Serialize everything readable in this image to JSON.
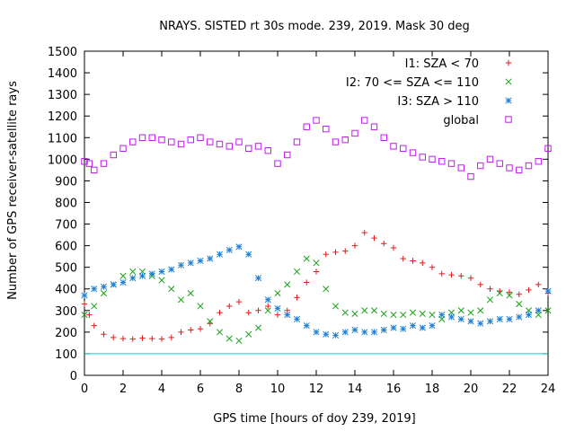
{
  "chart_data": {
    "type": "scatter",
    "title": "NRAYS. SISTED rt 30s mode. 239, 2019. Mask 30 deg",
    "xlabel": "GPS time [hours of doy 239, 2019]",
    "ylabel": "Number of GPS receiver-satellite rays",
    "xlim": [
      0,
      24
    ],
    "ylim": [
      0,
      1500
    ],
    "xticks": [
      0,
      2,
      4,
      6,
      8,
      10,
      12,
      14,
      16,
      18,
      20,
      22,
      24
    ],
    "yticks": [
      0,
      100,
      200,
      300,
      400,
      500,
      600,
      700,
      800,
      900,
      1000,
      1100,
      1200,
      1300,
      1400,
      1500
    ],
    "grid": false,
    "legend_position": "top-right",
    "reference_line": {
      "y": 100,
      "color": "#00d4d4"
    },
    "series": [
      {
        "name": "I1: SZA < 70",
        "marker": "plus",
        "color": "#e31a1c",
        "x": [
          0,
          0.25,
          0.5,
          1,
          1.5,
          2,
          2.5,
          3,
          3.5,
          4,
          4.5,
          5,
          5.5,
          6,
          6.5,
          7,
          7.5,
          8,
          8.5,
          9,
          9.5,
          10,
          10.5,
          11,
          11.5,
          12,
          12.5,
          13,
          13.5,
          14,
          14.5,
          15,
          15.5,
          16,
          16.5,
          17,
          17.5,
          18,
          18.5,
          19,
          19.5,
          20,
          20.5,
          21,
          21.5,
          22,
          22.5,
          23,
          23.5,
          24
        ],
        "values": [
          330,
          280,
          230,
          190,
          175,
          170,
          168,
          172,
          170,
          168,
          175,
          200,
          210,
          215,
          240,
          290,
          320,
          340,
          290,
          300,
          320,
          280,
          300,
          360,
          430,
          480,
          560,
          570,
          575,
          600,
          660,
          635,
          610,
          590,
          540,
          530,
          520,
          500,
          470,
          465,
          460,
          450,
          420,
          400,
          390,
          385,
          375,
          395,
          420,
          380
        ]
      },
      {
        "name": "I2: 70 <= SZA <= 110",
        "marker": "cross",
        "color": "#19a319",
        "x": [
          0,
          0.5,
          1,
          1.5,
          2,
          2.5,
          3,
          3.5,
          4,
          4.5,
          5,
          5.5,
          6,
          6.5,
          7,
          7.5,
          8,
          8.5,
          9,
          9.5,
          10,
          10.5,
          11,
          11.5,
          12,
          12.5,
          13,
          13.5,
          14,
          14.5,
          15,
          15.5,
          16,
          16.5,
          17,
          17.5,
          18,
          18.5,
          19,
          19.5,
          20,
          20.5,
          21,
          21.5,
          22,
          22.5,
          23,
          23.5,
          24
        ],
        "values": [
          280,
          320,
          380,
          420,
          460,
          480,
          480,
          460,
          440,
          400,
          350,
          380,
          320,
          250,
          200,
          170,
          160,
          190,
          220,
          300,
          380,
          420,
          480,
          540,
          520,
          400,
          320,
          290,
          285,
          300,
          300,
          285,
          280,
          280,
          290,
          285,
          280,
          260,
          290,
          300,
          290,
          300,
          350,
          380,
          370,
          330,
          300,
          280,
          300
        ]
      },
      {
        "name": "I3: SZA > 110",
        "marker": "asterisk",
        "color": "#1e7fd6",
        "x": [
          0,
          0.5,
          1,
          1.5,
          2,
          2.5,
          3,
          3.5,
          4,
          4.5,
          5,
          5.5,
          6,
          6.5,
          7,
          7.5,
          8,
          8.5,
          9,
          9.5,
          10,
          10.5,
          11,
          11.5,
          12,
          12.5,
          13,
          13.5,
          14,
          14.5,
          15,
          15.5,
          16,
          16.5,
          17,
          17.5,
          18,
          18.5,
          19,
          19.5,
          20,
          20.5,
          21,
          21.5,
          22,
          22.5,
          23,
          23.5,
          24
        ],
        "values": [
          370,
          400,
          410,
          420,
          430,
          450,
          460,
          470,
          480,
          490,
          510,
          520,
          530,
          540,
          560,
          580,
          595,
          560,
          450,
          350,
          310,
          280,
          260,
          230,
          200,
          190,
          185,
          200,
          210,
          200,
          200,
          210,
          220,
          215,
          230,
          220,
          230,
          280,
          270,
          260,
          250,
          240,
          250,
          260,
          260,
          270,
          280,
          300,
          390
        ]
      },
      {
        "name": "global",
        "marker": "square",
        "color": "#bf1bf0",
        "x": [
          0,
          0.25,
          0.5,
          1,
          1.5,
          2,
          2.5,
          3,
          3.5,
          4,
          4.5,
          5,
          5.5,
          6,
          6.5,
          7,
          7.5,
          8,
          8.5,
          9,
          9.5,
          10,
          10.5,
          11,
          11.5,
          12,
          12.5,
          13,
          13.5,
          14,
          14.5,
          15,
          15.5,
          16,
          16.5,
          17,
          17.5,
          18,
          18.5,
          19,
          19.5,
          20,
          20.5,
          21,
          21.5,
          22,
          22.5,
          23,
          23.5,
          24
        ],
        "values": [
          990,
          980,
          950,
          980,
          1020,
          1050,
          1080,
          1100,
          1100,
          1090,
          1080,
          1070,
          1090,
          1100,
          1080,
          1070,
          1060,
          1080,
          1050,
          1060,
          1040,
          980,
          1020,
          1080,
          1150,
          1180,
          1140,
          1080,
          1090,
          1120,
          1180,
          1150,
          1100,
          1060,
          1050,
          1030,
          1010,
          1000,
          990,
          980,
          960,
          920,
          970,
          1000,
          980,
          960,
          950,
          970,
          990,
          1050
        ]
      }
    ]
  }
}
